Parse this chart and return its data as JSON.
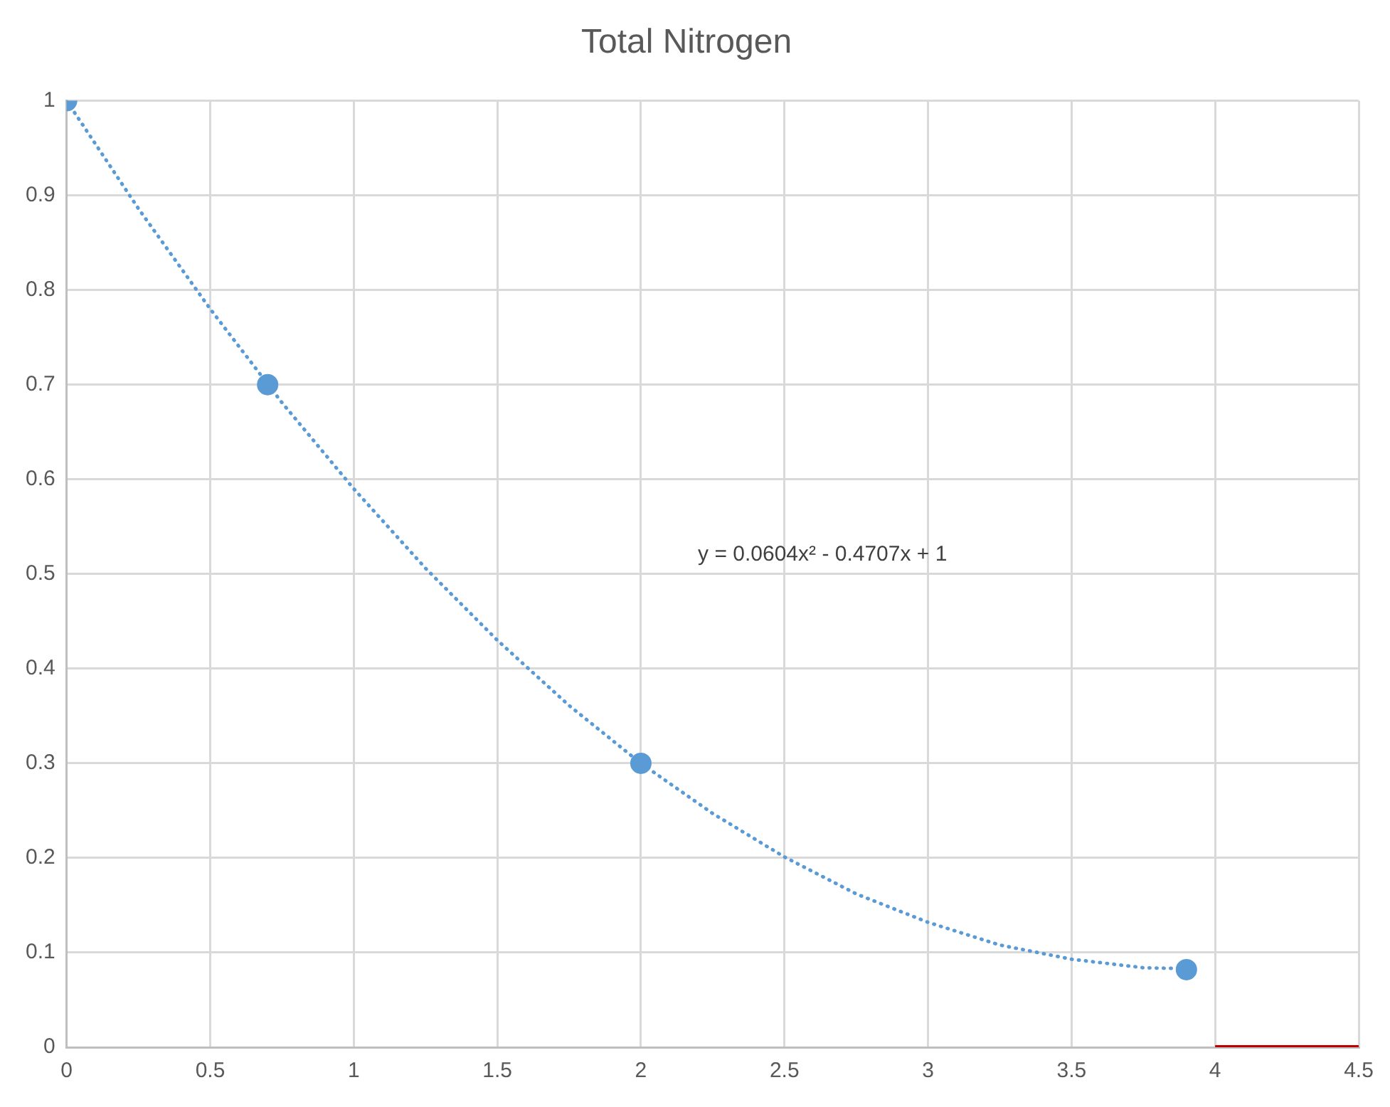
{
  "chart_data": {
    "type": "scatter",
    "title": "Total Nitrogen",
    "grid": true,
    "xlim": [
      0,
      4.5
    ],
    "xticks": [
      0,
      0.5,
      1,
      1.5,
      2,
      2.5,
      3,
      3.5,
      4,
      4.5
    ],
    "ylim": [
      0,
      1
    ],
    "yticks": [
      0,
      0.1,
      0.2,
      0.3,
      0.4,
      0.5,
      0.6,
      0.7,
      0.8,
      0.9,
      1
    ],
    "series": [
      {
        "type": "line",
        "line_style": "dotted",
        "color": "#5b9bd5",
        "x": [
          0,
          0.25,
          0.5,
          0.75,
          1,
          1.25,
          1.5,
          1.75,
          2,
          2.25,
          2.5,
          2.75,
          3,
          3.25,
          3.5,
          3.75,
          3.9
        ],
        "values": [
          1,
          0.886,
          0.78,
          0.681,
          0.59,
          0.506,
          0.43,
          0.361,
          0.3,
          0.247,
          0.201,
          0.162,
          0.132,
          0.108,
          0.093,
          0.084,
          0.083
        ]
      },
      {
        "type": "line",
        "color": "#c00000",
        "x": [
          4,
          4.5
        ],
        "values": [
          0,
          0
        ]
      },
      {
        "marker": "circle",
        "color": "#5b9bd5",
        "x": [
          0,
          0.7,
          2,
          3.9
        ],
        "values": [
          1,
          0.7,
          0.3,
          0.082
        ]
      }
    ],
    "annotations": [
      "y = 0.0604x² - 0.4707x + 1"
    ]
  }
}
